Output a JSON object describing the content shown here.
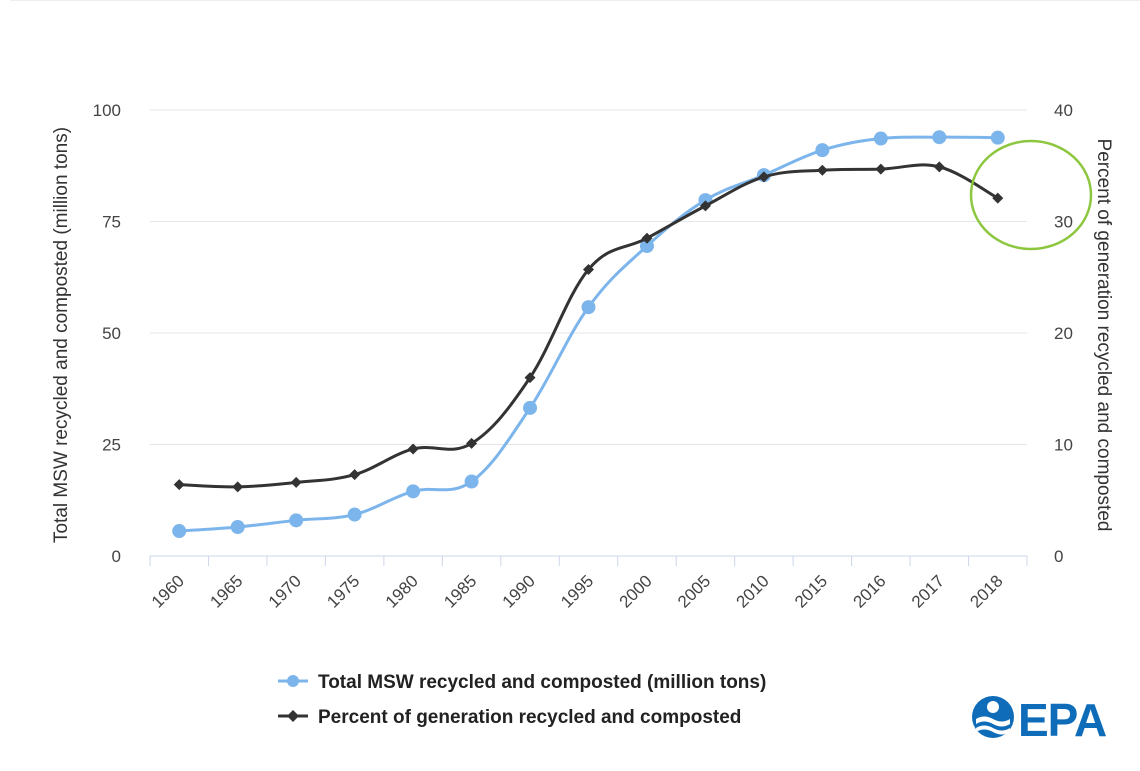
{
  "chart_data": {
    "type": "line",
    "categories": [
      "1960",
      "1965",
      "1970",
      "1975",
      "1980",
      "1985",
      "1990",
      "1995",
      "2000",
      "2005",
      "2010",
      "2015",
      "2016",
      "2017",
      "2018"
    ],
    "series": [
      {
        "name": "Total MSW recycled and composted (million tons)",
        "axis": "left",
        "color": "#7cb5ec",
        "marker": "circle",
        "values": [
          5.6,
          6.5,
          8.0,
          9.3,
          14.5,
          16.7,
          33.2,
          55.8,
          69.5,
          79.8,
          85.4,
          91.0,
          93.6,
          93.9,
          93.8
        ]
      },
      {
        "name": "Percent of generation recycled and composted",
        "axis": "right",
        "color": "#333333",
        "marker": "diamond",
        "values": [
          6.4,
          6.2,
          6.6,
          7.3,
          9.6,
          10.1,
          16.0,
          25.7,
          28.5,
          31.4,
          34.0,
          34.6,
          34.7,
          34.9,
          32.1
        ]
      }
    ],
    "y_left": {
      "label": "Total MSW recycled and composted (million tons)",
      "range": [
        0,
        100
      ],
      "ticks": [
        "0",
        "25",
        "50",
        "75",
        "100"
      ]
    },
    "y_right": {
      "label": "Percent of generation recycled and composted",
      "range": [
        0,
        40
      ],
      "ticks": [
        "0",
        "10",
        "20",
        "30",
        "40"
      ]
    },
    "grid": true,
    "legend_position": "bottom-center",
    "annotation": {
      "type": "circle",
      "highlight": "2018 percent value",
      "color": "#8dc63f"
    }
  },
  "logo": {
    "text": "EPA",
    "icon": "epa-emblem-icon",
    "color": "#0e6cb8"
  }
}
